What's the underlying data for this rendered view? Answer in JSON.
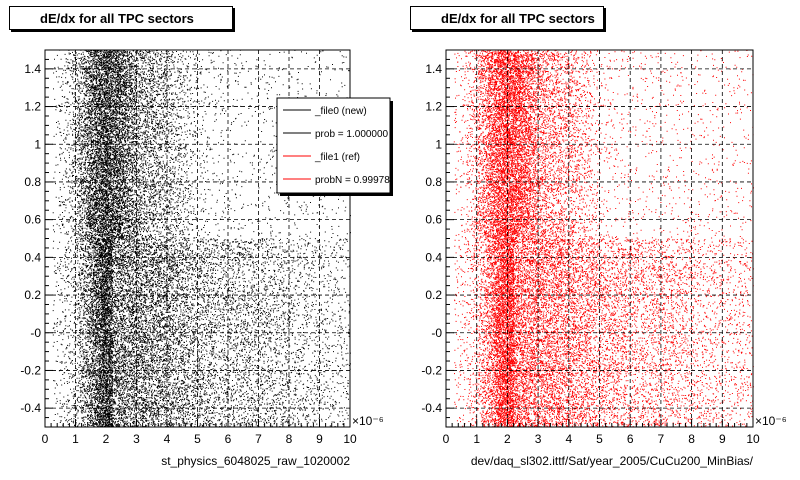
{
  "window_bottom_strip": "",
  "chart_data": [
    {
      "type": "scatter",
      "title": "dE/dx for all TPC sectors",
      "xlabel": "st_physics_6048025_raw_1020002",
      "ylabel": "",
      "x_exponent_label": "×10⁻⁶",
      "xlim": [
        0,
        10
      ],
      "ylim": [
        -0.5,
        1.5
      ],
      "x_ticks": [
        "0",
        "1",
        "2",
        "3",
        "4",
        "5",
        "6",
        "7",
        "8",
        "9",
        "10"
      ],
      "y_ticks": [
        "-0.4",
        "-0.2",
        "-0",
        "0.2",
        "0.4",
        "0.6",
        "0.8",
        "1",
        "1.2",
        "1.4"
      ],
      "grid": true,
      "marker_color": "#000000",
      "density_profile": {
        "x_peak": 2.0,
        "band_upper_y_range": [
          0.5,
          1.5
        ],
        "band_lower_y_range": [
          -0.5,
          0.5
        ],
        "upper_x_extent_note": "sparse beyond x≈4",
        "lower_x_extent_note": "spans full x range"
      },
      "legend": {
        "position": "top-right",
        "entries": [
          {
            "label": "_file0 (new)",
            "color": "#000000"
          },
          {
            "label": "prob = 1.000000",
            "color": "#000000"
          },
          {
            "label": "_file1 (ref)",
            "color": "#ff0000"
          },
          {
            "label": "probN = 0.99978",
            "color": "#ff0000"
          }
        ]
      }
    },
    {
      "type": "scatter",
      "title": "dE/dx for all TPC sectors",
      "xlabel": "dev/daq_sl302.ittf/Sat/year_2005/CuCu200_MinBias/",
      "ylabel": "",
      "x_exponent_label": "×10⁻⁶",
      "xlim": [
        0,
        10
      ],
      "ylim": [
        -0.5,
        1.5
      ],
      "x_ticks": [
        "0",
        "1",
        "2",
        "3",
        "4",
        "5",
        "6",
        "7",
        "8",
        "9",
        "10"
      ],
      "y_ticks": [
        "-0.4",
        "-0.2",
        "-0",
        "0.2",
        "0.4",
        "0.6",
        "0.8",
        "1",
        "1.2",
        "1.4"
      ],
      "grid": true,
      "marker_color": "#ff0000",
      "density_profile": {
        "x_peak": 2.0,
        "band_upper_y_range": [
          0.5,
          1.5
        ],
        "band_lower_y_range": [
          -0.5,
          0.5
        ]
      }
    }
  ]
}
